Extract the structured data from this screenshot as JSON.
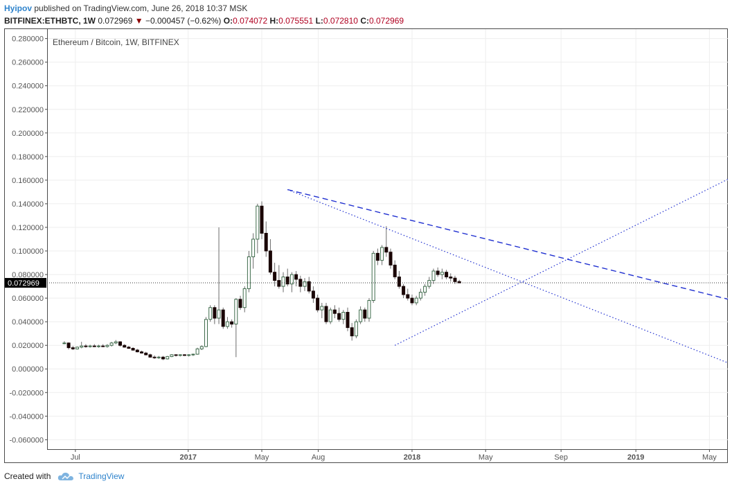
{
  "header": {
    "author": "Hyipov",
    "published_text": "published on TradingView.com, June 26, 2018 10:37 MSK",
    "symbol": "BITFINEX:ETHBTC, 1W",
    "last": "0.072969",
    "change": "−0.000457 (−0.62%)",
    "o_label": "O:",
    "o_value": "0.074072",
    "h_label": "H:",
    "h_value": "0.075551",
    "l_label": "L:",
    "l_value": "0.072810",
    "c_label": "C:",
    "c_value": "0.072969"
  },
  "footer": {
    "created_with": "Created with",
    "brand": "TradingView"
  },
  "colors": {
    "up_body": "#ffffff",
    "up_border": "#3e6b4b",
    "down_body": "#1a0505",
    "down_border": "#1a0505",
    "wick": "#6b6b6b",
    "trendline": "#1f2fd0",
    "grid": "#eeeeee",
    "axis_text": "#555555",
    "price_label_bg": "#000000",
    "price_label_text": "#ffffff"
  },
  "chart_data": {
    "type": "candlestick",
    "title": "Ethereum / Bitcoin, 1W, BITFINEX",
    "ylim": [
      -0.068,
      0.288
    ],
    "x_range": [
      "2016-05-17",
      "2019-05-31"
    ],
    "y_ticks": [
      0.28,
      0.26,
      0.24,
      0.22,
      0.2,
      0.18,
      0.16,
      0.14,
      0.12,
      0.1,
      0.08,
      0.06,
      0.04,
      0.02,
      0.0,
      -0.02,
      -0.04,
      -0.06
    ],
    "y_tick_labels": [
      "0.280000",
      "0.260000",
      "0.240000",
      "0.220000",
      "0.200000",
      "0.180000",
      "0.160000",
      "0.140000",
      "0.120000",
      "0.100000",
      "0.080000",
      "0.060000",
      "0.040000",
      "0.020000",
      "0.000000",
      "-0.020000",
      "-0.040000",
      "-0.060000"
    ],
    "x_ticks": [
      {
        "date": "2016-07-01",
        "label": "Jul",
        "bold": false
      },
      {
        "date": "2017-01-01",
        "label": "2017",
        "bold": true
      },
      {
        "date": "2017-05-01",
        "label": "May",
        "bold": false
      },
      {
        "date": "2017-08-01",
        "label": "Aug",
        "bold": false
      },
      {
        "date": "2018-01-01",
        "label": "2018",
        "bold": true
      },
      {
        "date": "2018-05-01",
        "label": "May",
        "bold": false
      },
      {
        "date": "2018-09-01",
        "label": "Sep",
        "bold": false
      },
      {
        "date": "2019-01-01",
        "label": "2019",
        "bold": true
      },
      {
        "date": "2019-05-01",
        "label": "May",
        "bold": false
      }
    ],
    "first_candle_date": "2016-06-13",
    "interval_days": 7,
    "candles": [
      [
        0.0215,
        0.0235,
        0.021,
        0.022
      ],
      [
        0.022,
        0.0225,
        0.0165,
        0.018
      ],
      [
        0.018,
        0.0195,
        0.016,
        0.017
      ],
      [
        0.017,
        0.019,
        0.0165,
        0.0185
      ],
      [
        0.0185,
        0.023,
        0.0175,
        0.0195
      ],
      [
        0.0195,
        0.021,
        0.018,
        0.019
      ],
      [
        0.019,
        0.0205,
        0.018,
        0.0195
      ],
      [
        0.0195,
        0.021,
        0.0185,
        0.019
      ],
      [
        0.019,
        0.0205,
        0.018,
        0.0195
      ],
      [
        0.0195,
        0.021,
        0.0185,
        0.019
      ],
      [
        0.019,
        0.021,
        0.018,
        0.02
      ],
      [
        0.02,
        0.023,
        0.019,
        0.022
      ],
      [
        0.022,
        0.0245,
        0.021,
        0.023
      ],
      [
        0.023,
        0.0235,
        0.019,
        0.02
      ],
      [
        0.02,
        0.021,
        0.018,
        0.0185
      ],
      [
        0.0185,
        0.0195,
        0.017,
        0.0175
      ],
      [
        0.0175,
        0.0185,
        0.0155,
        0.016
      ],
      [
        0.016,
        0.017,
        0.014,
        0.0145
      ],
      [
        0.0145,
        0.0155,
        0.013,
        0.0135
      ],
      [
        0.0135,
        0.0145,
        0.0115,
        0.012
      ],
      [
        0.012,
        0.013,
        0.0095,
        0.01
      ],
      [
        0.01,
        0.0115,
        0.0085,
        0.0095
      ],
      [
        0.0095,
        0.011,
        0.0085,
        0.01
      ],
      [
        0.01,
        0.011,
        0.0075,
        0.0085
      ],
      [
        0.0085,
        0.011,
        0.008,
        0.0105
      ],
      [
        0.0105,
        0.0125,
        0.01,
        0.012
      ],
      [
        0.012,
        0.0125,
        0.0105,
        0.0115
      ],
      [
        0.0115,
        0.0125,
        0.0105,
        0.012
      ],
      [
        0.012,
        0.0125,
        0.011,
        0.0115
      ],
      [
        0.0115,
        0.0125,
        0.0105,
        0.012
      ],
      [
        0.012,
        0.013,
        0.011,
        0.0125
      ],
      [
        0.0125,
        0.018,
        0.012,
        0.017
      ],
      [
        0.017,
        0.02,
        0.016,
        0.019
      ],
      [
        0.019,
        0.044,
        0.0185,
        0.042
      ],
      [
        0.042,
        0.054,
        0.04,
        0.052
      ],
      [
        0.052,
        0.054,
        0.038,
        0.043
      ],
      [
        0.043,
        0.12,
        0.038,
        0.05
      ],
      [
        0.05,
        0.052,
        0.034,
        0.036
      ],
      [
        0.036,
        0.044,
        0.034,
        0.04
      ],
      [
        0.04,
        0.042,
        0.035,
        0.038
      ],
      [
        0.038,
        0.06,
        0.01,
        0.059
      ],
      [
        0.059,
        0.062,
        0.05,
        0.052
      ],
      [
        0.052,
        0.07,
        0.048,
        0.068
      ],
      [
        0.068,
        0.1,
        0.065,
        0.095
      ],
      [
        0.095,
        0.115,
        0.085,
        0.11
      ],
      [
        0.11,
        0.14,
        0.098,
        0.138
      ],
      [
        0.138,
        0.142,
        0.11,
        0.115
      ],
      [
        0.115,
        0.125,
        0.095,
        0.1
      ],
      [
        0.1,
        0.11,
        0.08,
        0.082
      ],
      [
        0.082,
        0.09,
        0.07,
        0.075
      ],
      [
        0.075,
        0.088,
        0.068,
        0.07
      ],
      [
        0.07,
        0.082,
        0.065,
        0.078
      ],
      [
        0.078,
        0.085,
        0.07,
        0.072
      ],
      [
        0.072,
        0.082,
        0.065,
        0.08
      ],
      [
        0.08,
        0.083,
        0.07,
        0.076
      ],
      [
        0.076,
        0.079,
        0.065,
        0.07
      ],
      [
        0.07,
        0.077,
        0.066,
        0.074
      ],
      [
        0.074,
        0.078,
        0.064,
        0.066
      ],
      [
        0.066,
        0.07,
        0.056,
        0.06
      ],
      [
        0.06,
        0.063,
        0.048,
        0.05
      ],
      [
        0.05,
        0.056,
        0.043,
        0.053
      ],
      [
        0.053,
        0.056,
        0.038,
        0.04
      ],
      [
        0.04,
        0.052,
        0.038,
        0.05
      ],
      [
        0.05,
        0.054,
        0.043,
        0.047
      ],
      [
        0.047,
        0.052,
        0.04,
        0.042
      ],
      [
        0.042,
        0.05,
        0.038,
        0.048
      ],
      [
        0.048,
        0.052,
        0.032,
        0.035
      ],
      [
        0.035,
        0.039,
        0.024,
        0.028
      ],
      [
        0.028,
        0.042,
        0.026,
        0.04
      ],
      [
        0.04,
        0.053,
        0.038,
        0.05
      ],
      [
        0.05,
        0.052,
        0.04,
        0.043
      ],
      [
        0.043,
        0.06,
        0.04,
        0.058
      ],
      [
        0.058,
        0.1,
        0.056,
        0.098
      ],
      [
        0.098,
        0.102,
        0.088,
        0.092
      ],
      [
        0.092,
        0.105,
        0.088,
        0.103
      ],
      [
        0.103,
        0.121,
        0.095,
        0.099
      ],
      [
        0.099,
        0.102,
        0.085,
        0.088
      ],
      [
        0.088,
        0.092,
        0.076,
        0.078
      ],
      [
        0.078,
        0.083,
        0.068,
        0.07
      ],
      [
        0.07,
        0.072,
        0.06,
        0.063
      ],
      [
        0.063,
        0.068,
        0.058,
        0.06
      ],
      [
        0.06,
        0.063,
        0.054,
        0.056
      ],
      [
        0.056,
        0.062,
        0.054,
        0.06
      ],
      [
        0.06,
        0.068,
        0.058,
        0.065
      ],
      [
        0.065,
        0.072,
        0.062,
        0.07
      ],
      [
        0.07,
        0.078,
        0.068,
        0.075
      ],
      [
        0.075,
        0.085,
        0.072,
        0.083
      ],
      [
        0.083,
        0.086,
        0.078,
        0.08
      ],
      [
        0.08,
        0.085,
        0.076,
        0.082
      ],
      [
        0.082,
        0.084,
        0.076,
        0.078
      ],
      [
        0.078,
        0.081,
        0.074,
        0.077
      ],
      [
        0.077,
        0.079,
        0.072,
        0.074
      ],
      [
        0.074072,
        0.075551,
        0.07281,
        0.072969
      ]
    ],
    "last_price": 0.072969,
    "last_price_label": "0.072969",
    "trendlines": [
      {
        "style": "dashed",
        "points": [
          [
            "2017-06-12",
            0.152
          ],
          [
            "2019-06-01",
            0.059
          ]
        ]
      },
      {
        "style": "dotted",
        "points": [
          [
            "2017-06-12",
            0.152
          ],
          [
            "2019-06-01",
            0.005
          ]
        ]
      },
      {
        "style": "dotted",
        "points": [
          [
            "2017-12-04",
            0.02
          ],
          [
            "2019-06-01",
            0.161
          ]
        ]
      }
    ]
  }
}
